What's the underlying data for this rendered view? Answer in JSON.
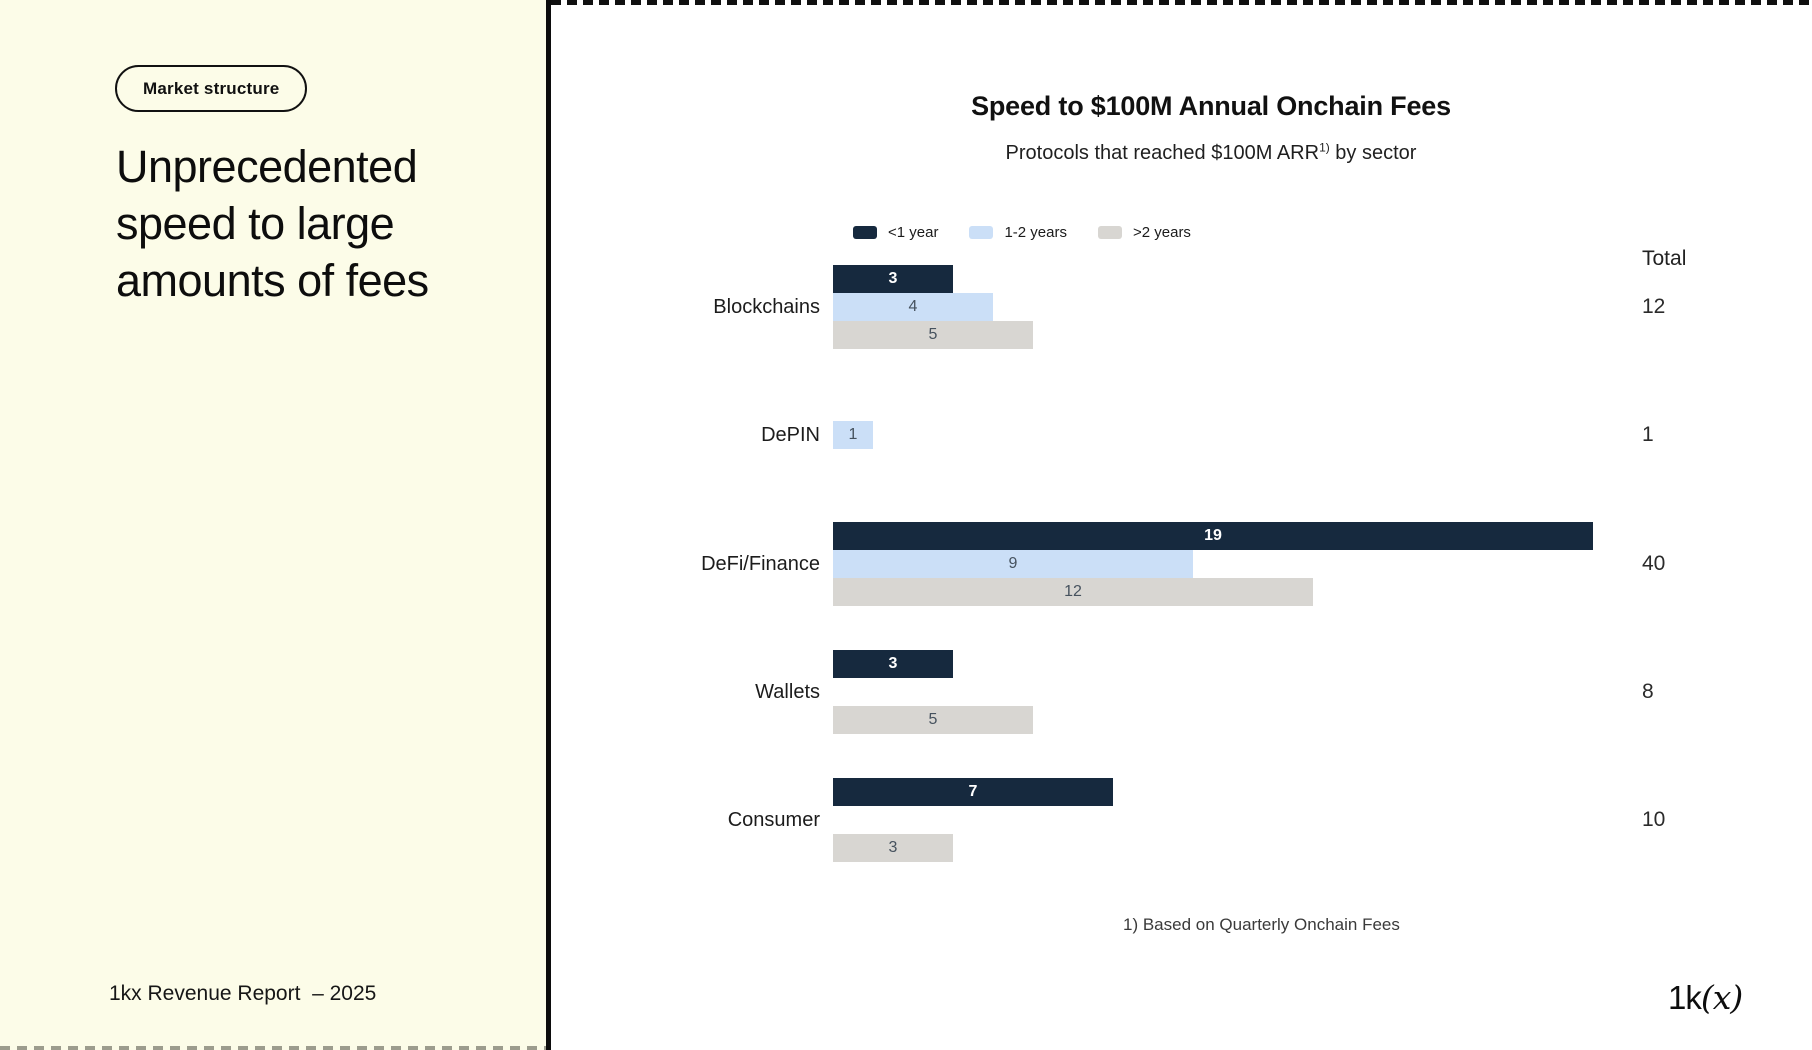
{
  "colors": {
    "cream": "#FCFCE8",
    "navy": "#16293E",
    "light_blue": "#CBDFF7",
    "light_gray": "#D8D6D2",
    "ink": "#111111"
  },
  "left_panel": {
    "badge_label": "Market structure",
    "heading_lines": [
      "Unprecedented",
      "speed to large",
      "amounts of fees"
    ],
    "footer": "1kx Revenue Report  – 2025"
  },
  "logo": {
    "prefix": "1k",
    "open_paren": "(",
    "x": "x",
    "close_paren": ")"
  },
  "chart": {
    "title": "Speed to $100M Annual Onchain Fees",
    "subtitle": {
      "text": "Protocols that reached $100M ARR",
      "superscript": "1)",
      "suffix": " by sector"
    },
    "total_label": "Total",
    "footnote": "1) Based on Quarterly Onchain Fees"
  },
  "chart_data": {
    "type": "bar",
    "orientation": "horizontal",
    "title": "Speed to $100M Annual Onchain Fees",
    "subtitle": "Protocols that reached $100M ARR 1) by sector",
    "categories": [
      "Blockchains",
      "DePIN",
      "DeFi/Finance",
      "Wallets",
      "Consumer"
    ],
    "series": [
      {
        "name": "<1 year",
        "color": "#16293E",
        "values": [
          3,
          null,
          19,
          3,
          7
        ]
      },
      {
        "name": "1-2 years",
        "color": "#CBDFF7",
        "values": [
          4,
          1,
          9,
          null,
          null
        ]
      },
      {
        "name": ">2 years",
        "color": "#D8D6D2",
        "values": [
          5,
          null,
          12,
          5,
          3
        ]
      }
    ],
    "totals": [
      12,
      1,
      40,
      8,
      10
    ],
    "value_unit": "number of protocols",
    "legend_position": "top-left-of-plot",
    "grid": false,
    "axis_labels_shown": false,
    "footnote": "1) Based on Quarterly Onchain Fees"
  }
}
